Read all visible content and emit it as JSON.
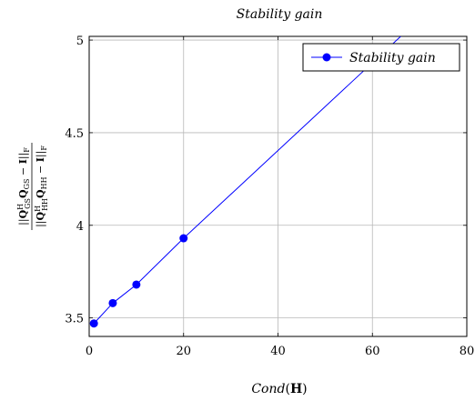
{
  "chart_data": {
    "type": "line",
    "title": "Stability gain",
    "xlabel": "Cond(H)",
    "ylabel": "||Q_GS^H Q_GS − I||_F / ||Q_HH^H Q_HH − I||_F",
    "xlim": [
      0,
      80
    ],
    "ylim": [
      3.4,
      5.02
    ],
    "xticks": [
      0,
      20,
      40,
      60,
      80
    ],
    "yticks": [
      3.5,
      4,
      4.5,
      5
    ],
    "xtick_labels": [
      "0",
      "20",
      "40",
      "60",
      "80"
    ],
    "ytick_labels": [
      "3.5",
      "4",
      "4.5",
      "5"
    ],
    "grid": true,
    "legend_position": "top-right",
    "series": [
      {
        "name": "Stability gain",
        "color": "#0000ff",
        "marker": "circle",
        "markers_x": [
          1,
          5,
          10,
          20
        ],
        "markers_y": [
          3.47,
          3.58,
          3.68,
          3.93
        ],
        "x": [
          1,
          5,
          10,
          20,
          66
        ],
        "y": [
          3.47,
          3.58,
          3.68,
          3.93,
          5.02
        ]
      }
    ]
  }
}
